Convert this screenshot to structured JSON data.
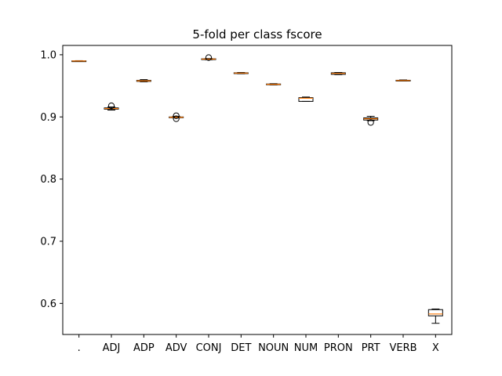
{
  "chart_data": {
    "type": "boxplot",
    "title": "5-fold per class fscore",
    "xlabel": "",
    "ylabel": "",
    "ylim": [
      0.55,
      1.015
    ],
    "yticks": [
      0.6,
      0.7,
      0.8,
      0.9,
      1.0
    ],
    "ytick_labels": [
      "0.6",
      "0.7",
      "0.8",
      "0.9",
      "1.0"
    ],
    "grid": false,
    "categories": [
      ".",
      "ADJ",
      "ADP",
      "ADV",
      "CONJ",
      "DET",
      "NOUN",
      "NUM",
      "PRON",
      "PRT",
      "VERB",
      "X"
    ],
    "boxes": [
      {
        "category": ".",
        "whislo": 0.9895,
        "q1": 0.9898,
        "med": 0.99,
        "q3": 0.9902,
        "whishi": 0.9905,
        "fliers": []
      },
      {
        "category": "ADJ",
        "whislo": 0.911,
        "q1": 0.9125,
        "med": 0.9135,
        "q3": 0.9145,
        "whishi": 0.916,
        "fliers": [
          0.918
        ]
      },
      {
        "category": "ADP",
        "whislo": 0.9565,
        "q1": 0.9572,
        "med": 0.958,
        "q3": 0.9588,
        "whishi": 0.96,
        "fliers": []
      },
      {
        "category": "ADV",
        "whislo": 0.8985,
        "q1": 0.899,
        "med": 0.8995,
        "q3": 0.9,
        "whishi": 0.901,
        "fliers": [
          0.897,
          0.902
        ]
      },
      {
        "category": "CONJ",
        "whislo": 0.992,
        "q1": 0.9925,
        "med": 0.993,
        "q3": 0.9935,
        "whishi": 0.994,
        "fliers": [
          0.9955
        ]
      },
      {
        "category": "DET",
        "whislo": 0.9695,
        "q1": 0.97,
        "med": 0.9705,
        "q3": 0.971,
        "whishi": 0.9715,
        "fliers": []
      },
      {
        "category": "NOUN",
        "whislo": 0.9515,
        "q1": 0.952,
        "med": 0.9525,
        "q3": 0.953,
        "whishi": 0.9535,
        "fliers": []
      },
      {
        "category": "NUM",
        "whislo": 0.925,
        "q1": 0.925,
        "med": 0.93,
        "q3": 0.931,
        "whishi": 0.932,
        "fliers": []
      },
      {
        "category": "PRON",
        "whislo": 0.968,
        "q1": 0.9685,
        "med": 0.97,
        "q3": 0.971,
        "whishi": 0.9715,
        "fliers": []
      },
      {
        "category": "PRT",
        "whislo": 0.894,
        "q1": 0.895,
        "med": 0.897,
        "q3": 0.8985,
        "whishi": 0.901,
        "fliers": [
          0.891
        ]
      },
      {
        "category": "VERB",
        "whislo": 0.958,
        "q1": 0.9583,
        "med": 0.9585,
        "q3": 0.959,
        "whishi": 0.9595,
        "fliers": []
      },
      {
        "category": "X",
        "whislo": 0.568,
        "q1": 0.58,
        "med": 0.583,
        "q3": 0.59,
        "whishi": 0.591,
        "fliers": []
      }
    ],
    "colors": {
      "box": "#000000",
      "median": "#ff7f0e",
      "flier": "#000000",
      "background": "#ffffff"
    }
  }
}
